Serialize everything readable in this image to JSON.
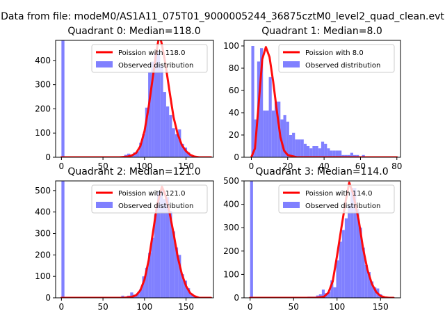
{
  "figure": {
    "suptitle": "Data from file: modeM0/AS1A11_075T01_9000005244_36875cztM0_level2_quad_clean.evt"
  },
  "colors": {
    "bars": "#8080ff",
    "curve": "#ff0000",
    "axes": "#000000"
  },
  "chart_data": [
    {
      "type": "bar",
      "title": "Quadrant 0: Median=118.0",
      "xlim": [
        -7,
        183
      ],
      "ylim": [
        0,
        483
      ],
      "xticks": [
        0,
        50,
        100,
        150
      ],
      "yticks": [
        0,
        100,
        200,
        300,
        400
      ],
      "legend_position": "top-right",
      "legend": [
        "Poission with 118.0",
        "Observed distribution"
      ],
      "hist": {
        "bin_edges": [
          0,
          3.6,
          7.2,
          10.8,
          14.4,
          18,
          21.6,
          25.2,
          28.8,
          32.4,
          36,
          39.6,
          43.2,
          46.8,
          50.4,
          54,
          57.6,
          61.2,
          64.8,
          68.4,
          72,
          75.6,
          79.2,
          82.8,
          86.4,
          90,
          93.6,
          97.2,
          100.8,
          104.4,
          108,
          111.6,
          115.2,
          118.8,
          122.4,
          126,
          129.6,
          133.2,
          136.8,
          140.4,
          144,
          147.6,
          151.2,
          154.8,
          158.4,
          162,
          165.6,
          169.2,
          172.8,
          176.4,
          180
        ],
        "counts": [
          490,
          0,
          0,
          0,
          0,
          0,
          0,
          0,
          0,
          0,
          0,
          0,
          0,
          0,
          0,
          0,
          0,
          0,
          0,
          0,
          0,
          10,
          15,
          10,
          20,
          25,
          60,
          95,
          205,
          350,
          395,
          430,
          435,
          380,
          270,
          210,
          175,
          120,
          95,
          115,
          55,
          40,
          20,
          5,
          5,
          0,
          0,
          0,
          0,
          0
        ]
      },
      "curve": {
        "name": "Poission with 118.0",
        "x": [
          0,
          70,
          80,
          85,
          90,
          95,
          100,
          105,
          110,
          115,
          118,
          121,
          125,
          130,
          135,
          140,
          145,
          150,
          155,
          160,
          166,
          180
        ],
        "y": [
          0,
          0,
          3,
          8,
          18,
          46,
          108,
          208,
          330,
          450,
          507,
          465,
          390,
          275,
          165,
          95,
          50,
          25,
          10,
          3,
          0,
          0
        ]
      }
    },
    {
      "type": "bar",
      "title": "Quadrant 1: Median=8.0",
      "xlim": [
        -4,
        82
      ],
      "ylim": [
        0,
        105
      ],
      "xticks": [
        0,
        20,
        40,
        60,
        80
      ],
      "yticks": [
        0,
        20,
        40,
        60,
        80,
        100
      ],
      "legend_position": "top-right",
      "legend": [
        "Poission with 8.0",
        "Observed distribution"
      ],
      "hist": {
        "bin_edges": [
          0,
          1.6,
          3.2,
          4.8,
          6.4,
          8,
          9.6,
          11.2,
          12.8,
          14.4,
          16,
          17.6,
          19.2,
          20.8,
          22.4,
          24,
          25.6,
          27.2,
          28.8,
          30.4,
          32,
          33.6,
          35.2,
          36.8,
          38.4,
          40,
          41.6,
          43.2,
          44.8,
          46.4,
          48,
          49.6,
          51.2,
          52.8,
          54.4,
          56,
          57.6,
          59.2,
          60.8,
          62.4,
          64,
          65.6,
          67.2,
          68.8,
          70.4,
          72,
          73.6,
          75.2,
          76.8,
          78.4,
          80
        ],
        "counts": [
          100,
          34,
          86,
          98,
          42,
          42,
          72,
          42,
          50,
          50,
          34,
          38,
          32,
          20,
          22,
          16,
          16,
          16,
          12,
          10,
          8,
          10,
          10,
          8,
          14,
          12,
          8,
          6,
          6,
          6,
          6,
          2,
          2,
          2,
          4,
          2,
          2,
          0,
          2,
          0,
          0,
          0,
          0,
          0,
          0,
          0,
          0,
          0,
          0,
          0
        ]
      },
      "curve": {
        "name": "Poission with 8.0",
        "x": [
          0,
          2,
          4,
          6,
          8,
          10,
          12,
          14,
          16,
          18,
          20,
          25,
          30,
          40,
          60,
          80
        ],
        "y": [
          0,
          8,
          47,
          88,
          99,
          90,
          68,
          42,
          18,
          6,
          2,
          0,
          0,
          0,
          0,
          0
        ]
      }
    },
    {
      "type": "bar",
      "title": "Quadrant 2: Median=121.0",
      "xlim": [
        -7,
        183
      ],
      "ylim": [
        0,
        545
      ],
      "xticks": [
        0,
        50,
        100,
        150
      ],
      "yticks": [
        0,
        100,
        200,
        300,
        400,
        500
      ],
      "legend_position": "top-right",
      "legend": [
        "Poission with 121.0",
        "Observed distribution"
      ],
      "hist": {
        "bin_edges": [
          0,
          3.6,
          7.2,
          10.8,
          14.4,
          18,
          21.6,
          25.2,
          28.8,
          32.4,
          36,
          39.6,
          43.2,
          46.8,
          50.4,
          54,
          57.6,
          61.2,
          64.8,
          68.4,
          72,
          75.6,
          79.2,
          82.8,
          86.4,
          90,
          93.6,
          97.2,
          100.8,
          104.4,
          108,
          111.6,
          115.2,
          118.8,
          122.4,
          126,
          129.6,
          133.2,
          136.8,
          140.4,
          144,
          147.6,
          151.2,
          154.8,
          158.4,
          162,
          165.6,
          169.2,
          172.8,
          176.4,
          180
        ],
        "counts": [
          560,
          0,
          0,
          0,
          0,
          0,
          0,
          0,
          0,
          0,
          0,
          0,
          0,
          0,
          0,
          0,
          0,
          0,
          0,
          0,
          10,
          5,
          10,
          25,
          15,
          20,
          40,
          100,
          140,
          210,
          280,
          390,
          495,
          500,
          460,
          470,
          405,
          310,
          235,
          200,
          110,
          80,
          45,
          20,
          10,
          0,
          0,
          0,
          0,
          0
        ]
      },
      "curve": {
        "name": "Poission with 121.0",
        "x": [
          0,
          75,
          85,
          90,
          95,
          100,
          105,
          110,
          115,
          121,
          125,
          130,
          135,
          140,
          145,
          150,
          155,
          160,
          166,
          180
        ],
        "y": [
          0,
          0,
          5,
          12,
          35,
          85,
          175,
          300,
          430,
          518,
          480,
          400,
          300,
          190,
          110,
          55,
          22,
          8,
          0,
          0
        ]
      }
    },
    {
      "type": "bar",
      "title": "Quadrant 3: Median=114.0",
      "xlim": [
        -7,
        173
      ],
      "ylim": [
        0,
        500
      ],
      "xticks": [
        0,
        50,
        100,
        150
      ],
      "yticks": [
        0,
        100,
        200,
        300,
        400,
        500
      ],
      "legend_position": "top-right",
      "legend": [
        "Poission with 114.0",
        "Observed distribution"
      ],
      "hist": {
        "bin_edges": [
          0,
          3.3,
          6.6,
          9.9,
          13.2,
          16.5,
          19.8,
          23.1,
          26.4,
          29.7,
          33,
          36.3,
          39.6,
          42.9,
          46.2,
          49.5,
          52.8,
          56.1,
          59.4,
          62.7,
          66,
          69.3,
          72.6,
          75.9,
          79.2,
          82.5,
          85.8,
          89.1,
          92.4,
          95.7,
          99,
          102.3,
          105.6,
          108.9,
          112.2,
          115.5,
          118.8,
          122.1,
          125.4,
          128.7,
          132,
          135.3,
          138.6,
          141.9,
          145.2,
          148.5,
          151.8,
          155.1,
          158.4,
          161.7,
          165
        ],
        "counts": [
          500,
          0,
          0,
          0,
          0,
          0,
          0,
          0,
          0,
          0,
          0,
          0,
          0,
          0,
          0,
          0,
          0,
          0,
          0,
          0,
          5,
          5,
          5,
          10,
          15,
          35,
          20,
          25,
          75,
          45,
          160,
          240,
          290,
          340,
          400,
          470,
          470,
          380,
          300,
          215,
          140,
          110,
          70,
          45,
          40,
          15,
          5,
          0,
          0,
          0
        ]
      },
      "curve": {
        "name": "Poission with 114.0",
        "x": [
          0,
          75,
          80,
          85,
          90,
          95,
          100,
          105,
          110,
          114,
          118,
          120,
          125,
          130,
          135,
          140,
          145,
          150,
          155,
          160,
          165
        ],
        "y": [
          0,
          0,
          2,
          5,
          22,
          70,
          180,
          300,
          415,
          493,
          450,
          420,
          330,
          210,
          120,
          60,
          25,
          8,
          2,
          0,
          0
        ]
      }
    }
  ]
}
